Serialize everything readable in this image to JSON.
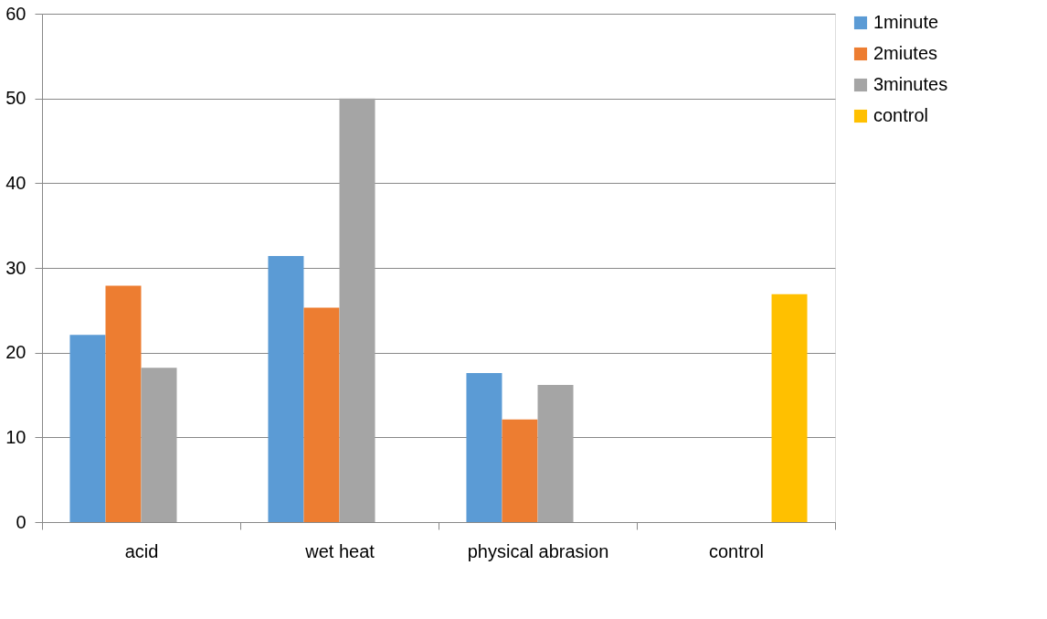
{
  "chart_data": {
    "type": "bar",
    "categories": [
      "acid",
      "wet heat",
      "physical abrasion",
      "control"
    ],
    "series": [
      {
        "name": "1minute",
        "color": "#5b9bd5",
        "values": [
          22.1,
          31.4,
          17.6,
          null
        ]
      },
      {
        "name": "2miutes",
        "color": "#ed7d31",
        "values": [
          27.9,
          25.3,
          12.1,
          null
        ]
      },
      {
        "name": "3minutes",
        "color": "#a5a5a5",
        "values": [
          18.2,
          50,
          16.2,
          null
        ]
      },
      {
        "name": "control",
        "color": "#ffc000",
        "values": [
          null,
          null,
          null,
          26.9
        ]
      }
    ],
    "ylim": [
      0,
      60
    ],
    "yticks": [
      0,
      10,
      20,
      30,
      40,
      50,
      60
    ],
    "grid": "y",
    "legend": "right"
  }
}
